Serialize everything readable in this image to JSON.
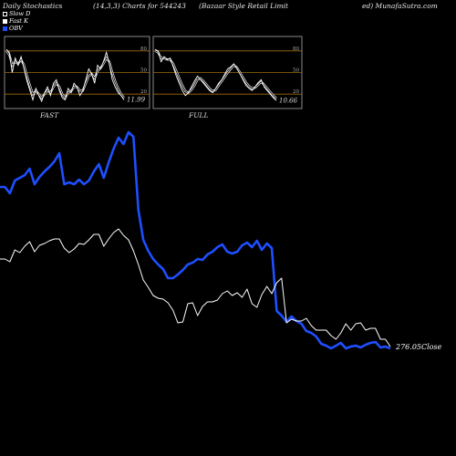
{
  "header": {
    "left": "Daily Stochastics",
    "params": "(14,3,3) Charts for 544243",
    "company": "(Bazaar Style   Retail Limit",
    "right": "ed) MunafaSutra.com"
  },
  "legend": {
    "items": [
      {
        "label": "Slow  D",
        "swatch": "outline"
      },
      {
        "label": "Fast K",
        "swatch": "white"
      },
      {
        "label": "OBV",
        "swatch": "blue"
      }
    ]
  },
  "colors": {
    "obv": "#1e4fff",
    "price": "#ffffff",
    "band": "#a06a10",
    "grid": "#555555"
  },
  "panels": [
    {
      "id": "fast",
      "title": "FAST",
      "last_value": "11.99",
      "grid_labels": [
        "80",
        "50",
        "20"
      ],
      "k": [
        82,
        78,
        50,
        70,
        60,
        72,
        55,
        38,
        25,
        12,
        28,
        18,
        10,
        22,
        30,
        18,
        35,
        40,
        25,
        15,
        12,
        28,
        22,
        35,
        30,
        18,
        25,
        40,
        55,
        48,
        35,
        60,
        55,
        65,
        78,
        62,
        40,
        30,
        22,
        18,
        12
      ],
      "d": [
        80,
        75,
        60,
        65,
        62,
        68,
        60,
        45,
        32,
        20,
        25,
        20,
        15,
        20,
        25,
        22,
        30,
        35,
        30,
        20,
        15,
        22,
        24,
        30,
        30,
        25,
        25,
        35,
        45,
        48,
        42,
        52,
        56,
        62,
        70,
        65,
        50,
        38,
        28,
        20,
        15
      ]
    },
    {
      "id": "full",
      "title": "FULL",
      "last_value": "10.66",
      "grid_labels": [
        "80",
        "50",
        "20"
      ],
      "k": [
        82,
        80,
        65,
        72,
        68,
        70,
        58,
        45,
        35,
        25,
        18,
        22,
        30,
        38,
        45,
        40,
        35,
        30,
        25,
        22,
        28,
        35,
        40,
        48,
        55,
        58,
        62,
        56,
        48,
        40,
        32,
        28,
        25,
        30,
        36,
        40,
        30,
        25,
        20,
        15,
        11
      ],
      "d": [
        80,
        78,
        70,
        70,
        68,
        68,
        62,
        52,
        42,
        32,
        24,
        22,
        26,
        32,
        40,
        42,
        38,
        33,
        28,
        24,
        26,
        32,
        38,
        44,
        50,
        55,
        60,
        57,
        50,
        43,
        36,
        31,
        28,
        29,
        33,
        37,
        33,
        28,
        23,
        18,
        14
      ]
    }
  ],
  "main": {
    "close_label": "276.05Close"
  },
  "chart_data": {
    "type": "line",
    "note_scale": "Relative values read from an unlabeled chart (higher = higher on chart).",
    "series": [
      {
        "name": "OBV",
        "values": [
          315,
          315,
          308,
          322,
          325,
          328,
          335,
          318,
          326,
          332,
          337,
          343,
          352,
          318,
          320,
          318,
          323,
          318,
          322,
          332,
          340,
          325,
          342,
          357,
          369,
          362,
          375,
          370,
          290,
          257,
          245,
          236,
          230,
          225,
          215,
          215,
          219,
          224,
          230,
          232,
          236,
          235,
          241,
          244,
          249,
          252,
          244,
          242,
          244,
          251,
          254,
          249,
          256,
          246,
          253,
          248,
          179,
          174,
          167,
          173,
          168,
          165,
          157,
          155,
          151,
          143,
          141,
          138,
          141,
          144,
          138,
          140,
          141,
          139,
          142,
          144,
          145,
          139,
          140,
          138
        ]
      },
      {
        "name": "Price",
        "values": [
          236,
          236,
          233,
          246,
          243,
          250,
          255,
          244,
          251,
          253,
          256,
          258,
          258,
          248,
          243,
          247,
          253,
          252,
          257,
          263,
          263,
          250,
          258,
          265,
          269,
          262,
          257,
          245,
          230,
          213,
          205,
          196,
          193,
          192,
          188,
          180,
          166,
          167,
          187,
          188,
          174,
          184,
          189,
          189,
          191,
          198,
          201,
          196,
          199,
          194,
          203,
          187,
          183,
          197,
          206,
          198,
          210,
          215,
          166,
          170,
          168,
          168,
          171,
          163,
          158,
          158,
          158,
          152,
          148,
          155,
          165,
          158,
          165,
          166,
          158,
          160,
          160,
          148,
          148,
          140
        ]
      }
    ],
    "ylim": [
      100,
      400
    ]
  }
}
